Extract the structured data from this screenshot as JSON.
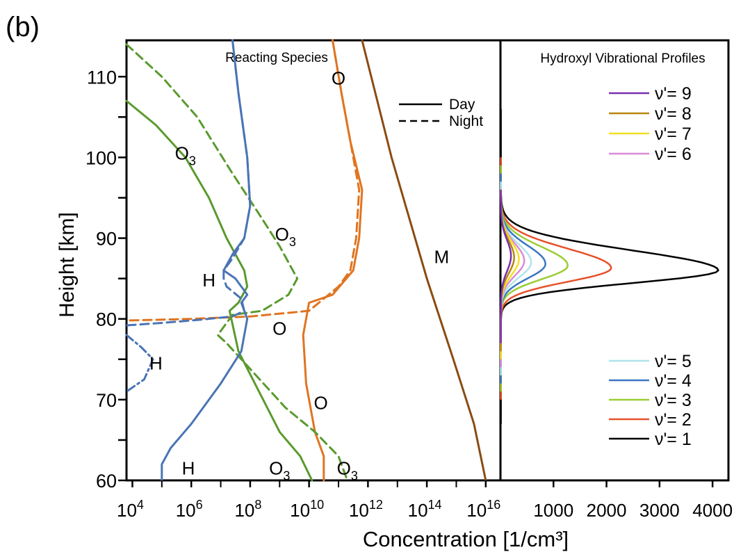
{
  "panel_label": "(b)",
  "shared": {
    "ylabel": "Height [km]",
    "xlabel": "Concentration [1/cm³]"
  },
  "chart_data": [
    {
      "type": "line",
      "title": "Reacting Species",
      "ylim": [
        60,
        114.5
      ],
      "yticks": [
        60,
        70,
        80,
        90,
        100,
        110
      ],
      "x_scale": "log10",
      "xlim_exponent": [
        3.8,
        16.5
      ],
      "xticks_exponent": [
        4,
        6,
        8,
        10,
        12,
        14,
        16
      ],
      "xtick_base": "10",
      "legend": {
        "position": "top-right",
        "entries": [
          {
            "label": "Day",
            "style": "solid"
          },
          {
            "label": "Night",
            "style": "dashed"
          }
        ]
      },
      "annotations": [
        {
          "text": "O",
          "sub": "",
          "x_exp": 11.0,
          "y": 109.8
        },
        {
          "text": "O",
          "sub": "3",
          "x_exp": 5.8,
          "y": 100.5
        },
        {
          "text": "O",
          "sub": "3",
          "x_exp": 9.2,
          "y": 90.5
        },
        {
          "text": "M",
          "sub": "",
          "x_exp": 14.5,
          "y": 87.7
        },
        {
          "text": "H",
          "sub": "",
          "x_exp": 6.6,
          "y": 84.8
        },
        {
          "text": "O",
          "sub": "",
          "x_exp": 9.0,
          "y": 78.8
        },
        {
          "text": "H",
          "sub": "",
          "x_exp": 4.8,
          "y": 74.5
        },
        {
          "text": "O",
          "sub": "",
          "x_exp": 10.4,
          "y": 69.6
        },
        {
          "text": "H",
          "sub": "",
          "x_exp": 5.9,
          "y": 61.5
        },
        {
          "text": "O",
          "sub": "3",
          "x_exp": 9.0,
          "y": 61.5
        },
        {
          "text": "O",
          "sub": "3",
          "x_exp": 11.3,
          "y": 61.5
        }
      ],
      "series": [
        {
          "species": "M",
          "time": "day",
          "color": "#8a4b10",
          "style": "solid",
          "x_exp": [
            11.8,
            12.8,
            14.0,
            14.9,
            15.6,
            16.0
          ],
          "y": [
            114.5,
            100,
            85,
            75,
            67,
            60
          ]
        },
        {
          "species": "O",
          "time": "day",
          "color": "#e07420",
          "style": "solid",
          "x_exp": [
            10.8,
            11.1,
            11.4,
            11.8,
            11.7,
            11.5,
            10.8,
            10.0,
            9.8,
            9.9,
            10.2,
            10.5,
            10.5
          ],
          "y": [
            114.5,
            108,
            102,
            96,
            90,
            86,
            83,
            82,
            78,
            72,
            66,
            63,
            60
          ]
        },
        {
          "species": "O",
          "time": "night",
          "color": "#e07420",
          "style": "dashed",
          "x_exp": [
            10.8,
            11.1,
            11.4,
            11.7,
            11.6,
            11.4,
            11.0,
            10.0,
            8.0,
            6.0,
            3.8
          ],
          "y": [
            114.5,
            108,
            102,
            96,
            90,
            86,
            84,
            81,
            80.3,
            80.0,
            79.8
          ]
        },
        {
          "species": "O3",
          "time": "day",
          "color": "#5a9a2e",
          "style": "solid",
          "x_exp": [
            3.8,
            4.8,
            5.8,
            6.6,
            7.2,
            7.8,
            7.9,
            7.6,
            7.3,
            7.6,
            8.3,
            9.0,
            9.7,
            10.1
          ],
          "y": [
            107,
            104,
            100,
            95,
            90,
            86,
            84,
            82,
            81,
            76,
            71,
            66,
            63,
            60
          ]
        },
        {
          "species": "O3",
          "time": "night",
          "color": "#5a9a2e",
          "style": "dashed",
          "x_exp": [
            3.8,
            5.0,
            6.2,
            7.4,
            8.3,
            9.0,
            9.6,
            9.3,
            8.4,
            7.4,
            6.9,
            7.2,
            8.2,
            9.2,
            10.2,
            11.0,
            11.3
          ],
          "y": [
            114,
            110,
            105,
            98,
            93,
            89,
            85,
            83,
            81,
            80.5,
            78,
            77,
            73,
            69,
            66,
            63,
            60
          ]
        },
        {
          "species": "H",
          "time": "day",
          "color": "#4a74b5",
          "style": "solid",
          "x_exp": [
            7.4,
            7.6,
            7.9,
            8.0,
            7.8,
            7.4,
            7.1,
            7.5,
            7.9,
            7.7,
            7.9,
            7.7,
            7.0,
            6.0,
            5.3,
            5.0,
            5.0
          ],
          "y": [
            114.5,
            108,
            100,
            94,
            90,
            88,
            86,
            85,
            83,
            82,
            80,
            76,
            72,
            67,
            64,
            62,
            60
          ]
        },
        {
          "species": "H",
          "time": "night",
          "color": "#4a74b5",
          "style": "dashed",
          "x_exp": [
            7.4,
            7.6,
            7.9,
            8.0,
            7.8,
            7.4,
            7.1,
            7.1,
            7.2,
            7.7,
            7.8,
            7.4,
            6.3,
            5.0,
            3.8
          ],
          "y": [
            114.5,
            108,
            100,
            94,
            90,
            87.5,
            86,
            85,
            84,
            82.5,
            81,
            80.3,
            79.9,
            79.5,
            79.2
          ]
        },
        {
          "species": "H",
          "time": "night-lower",
          "color": "#4a74b5",
          "style": "dashdot",
          "x_exp": [
            3.8,
            4.3,
            4.7,
            4.4,
            3.8
          ],
          "y": [
            78,
            76.5,
            75,
            72.5,
            71
          ]
        }
      ]
    },
    {
      "type": "line",
      "title": "Hydroxyl Vibrational Profiles",
      "ylim": [
        60,
        114.5
      ],
      "xlim": [
        0,
        4300
      ],
      "xticks": [
        1000,
        2000,
        3000,
        4000
      ],
      "legend": [
        {
          "label": "ν'= 9",
          "color": "#7a2fb0"
        },
        {
          "label": "ν'= 8",
          "color": "#b8860b"
        },
        {
          "label": "ν'= 7",
          "color": "#f2e022"
        },
        {
          "label": "ν'= 6",
          "color": "#d98ad8"
        },
        {
          "label": "ν'= 5",
          "color": "#b0e3ec"
        },
        {
          "label": "ν'= 4",
          "color": "#3a76c2"
        },
        {
          "label": "ν'= 3",
          "color": "#9acd32"
        },
        {
          "label": "ν'= 2",
          "color": "#e8502a"
        },
        {
          "label": "ν'= 1",
          "color": "#000000"
        }
      ],
      "series": [
        {
          "name": "ν'= 1",
          "color": "#000000",
          "peak_x": 4100,
          "peak_y": 86.0,
          "upper_width": 3.5,
          "lower_width": 2.2,
          "top": 106,
          "bottom": 67
        },
        {
          "name": "ν'= 2",
          "color": "#e8502a",
          "peak_x": 2080,
          "peak_y": 86.3,
          "upper_width": 3.4,
          "lower_width": 2.4,
          "top": 100,
          "bottom": 70
        },
        {
          "name": "ν'= 3",
          "color": "#9acd32",
          "peak_x": 1260,
          "peak_y": 86.6,
          "upper_width": 3.3,
          "lower_width": 2.4,
          "top": 99,
          "bottom": 71
        },
        {
          "name": "ν'= 4",
          "color": "#3a76c2",
          "peak_x": 840,
          "peak_y": 86.8,
          "upper_width": 3.2,
          "lower_width": 2.5,
          "top": 98,
          "bottom": 72
        },
        {
          "name": "ν'= 5",
          "color": "#b0e3ec",
          "peak_x": 570,
          "peak_y": 87.0,
          "upper_width": 3.1,
          "lower_width": 2.6,
          "top": 97,
          "bottom": 73
        },
        {
          "name": "ν'= 6",
          "color": "#d98ad8",
          "peak_x": 440,
          "peak_y": 87.2,
          "upper_width": 3.0,
          "lower_width": 2.6,
          "top": 96,
          "bottom": 74
        },
        {
          "name": "ν'= 7",
          "color": "#f2e022",
          "peak_x": 340,
          "peak_y": 87.4,
          "upper_width": 3.0,
          "lower_width": 2.7,
          "top": 96,
          "bottom": 75
        },
        {
          "name": "ν'= 8",
          "color": "#b8860b",
          "peak_x": 250,
          "peak_y": 87.6,
          "upper_width": 2.9,
          "lower_width": 2.7,
          "top": 96,
          "bottom": 76
        },
        {
          "name": "ν'= 9",
          "color": "#7a2fb0",
          "peak_x": 190,
          "peak_y": 87.8,
          "upper_width": 2.8,
          "lower_width": 2.7,
          "top": 96,
          "bottom": 77
        }
      ]
    }
  ]
}
